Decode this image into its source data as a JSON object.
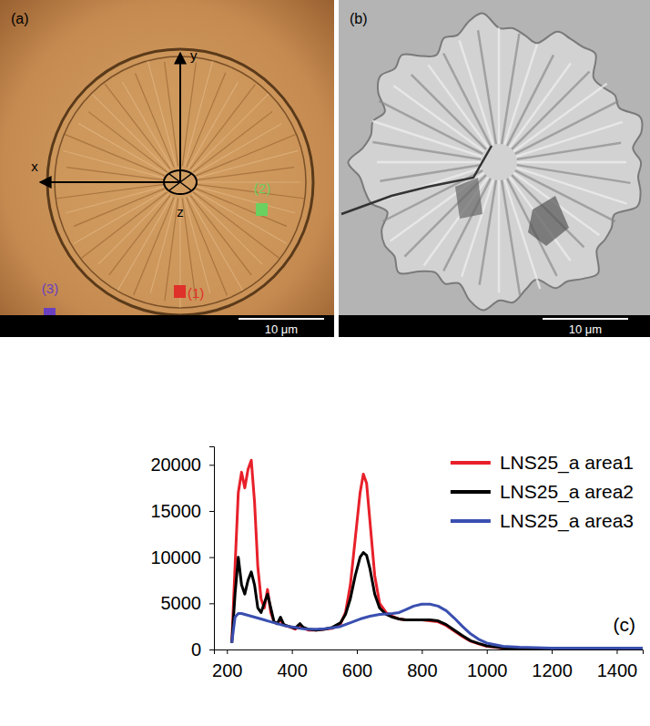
{
  "panels": [
    {
      "label": "(a)",
      "scale_bar": "10 μm",
      "axes": [
        "x",
        "y",
        "z"
      ],
      "areas": [
        {
          "label": "(1)",
          "color": "#e0302a"
        },
        {
          "label": "(2)",
          "color": "#6ad060"
        },
        {
          "label": "(3)",
          "color": "#6a40c0"
        }
      ]
    },
    {
      "label": "(b)",
      "scale_bar": "10 μm"
    }
  ],
  "chart_data": {
    "type": "line",
    "annotations": [
      "(c)"
    ],
    "x": [
      215,
      225,
      235,
      245,
      255,
      265,
      275,
      285,
      295,
      305,
      315,
      325,
      335,
      345,
      355,
      365,
      375,
      390,
      410,
      425,
      435,
      450,
      475,
      500,
      525,
      550,
      565,
      580,
      595,
      610,
      620,
      630,
      640,
      655,
      670,
      690,
      710,
      730,
      750,
      775,
      800,
      825,
      850,
      875,
      900,
      925,
      950,
      975,
      1000,
      1050,
      1100,
      1150,
      1200,
      1300,
      1400,
      1480
    ],
    "series": [
      {
        "name": "LNS25_a area1",
        "color": "#e8202a",
        "values": [
          700,
          9000,
          17000,
          19200,
          17500,
          19500,
          20500,
          16000,
          9000,
          5500,
          4500,
          6500,
          4000,
          3000,
          2800,
          3200,
          2600,
          2500,
          2200,
          2500,
          2300,
          2100,
          2100,
          2200,
          2300,
          2800,
          4000,
          7000,
          12000,
          17000,
          19000,
          18000,
          14000,
          8000,
          5000,
          4000,
          3600,
          3300,
          3200,
          3200,
          3200,
          3100,
          3000,
          2600,
          2000,
          1400,
          900,
          600,
          350,
          150,
          80,
          50,
          30,
          20,
          10,
          10
        ]
      },
      {
        "name": "LNS25_a area2",
        "color": "#000000",
        "values": [
          700,
          6000,
          10000,
          7000,
          6000,
          7500,
          8400,
          7000,
          4500,
          4000,
          5000,
          6000,
          4500,
          3000,
          2800,
          3500,
          2700,
          2500,
          2300,
          2800,
          2400,
          2200,
          2100,
          2200,
          2400,
          2900,
          3800,
          5500,
          8000,
          10000,
          10500,
          10200,
          8800,
          6000,
          4500,
          3800,
          3500,
          3300,
          3200,
          3200,
          3200,
          3200,
          3100,
          2700,
          2100,
          1500,
          950,
          650,
          400,
          180,
          100,
          60,
          40,
          20,
          10,
          10
        ]
      },
      {
        "name": "LNS25_a area3",
        "color": "#3a4fb0",
        "values": [
          700,
          3500,
          3900,
          3900,
          3800,
          3700,
          3600,
          3500,
          3400,
          3300,
          3200,
          3100,
          3000,
          2900,
          2800,
          2700,
          2600,
          2500,
          2400,
          2300,
          2250,
          2200,
          2200,
          2250,
          2350,
          2500,
          2700,
          2900,
          3100,
          3300,
          3400,
          3500,
          3600,
          3700,
          3800,
          3850,
          3900,
          4000,
          4300,
          4700,
          4900,
          4900,
          4700,
          4200,
          3400,
          2500,
          1700,
          1100,
          700,
          350,
          250,
          200,
          150,
          150,
          150,
          150
        ]
      }
    ],
    "xlim": [
      160,
      1480
    ],
    "ylim": [
      0,
      22000
    ],
    "xticks": [
      200,
      400,
      600,
      800,
      1000,
      1200,
      1400
    ],
    "yticks": [
      0,
      5000,
      10000,
      15000,
      20000
    ],
    "grid": false,
    "legend": "upper right"
  }
}
